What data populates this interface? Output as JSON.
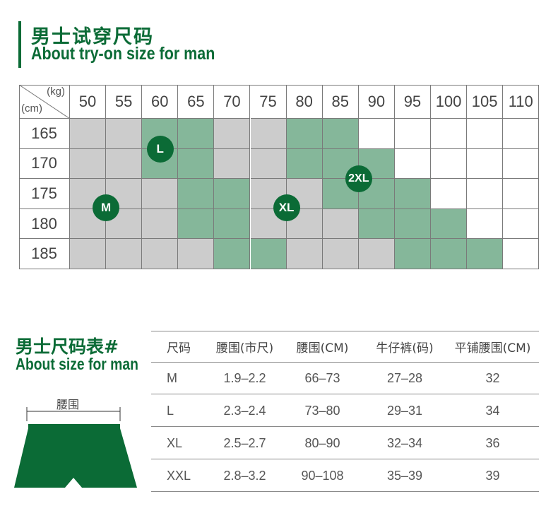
{
  "header": {
    "title_cn": "男士试穿尺码",
    "title_en": "About try-on size for man"
  },
  "tryon_grid": {
    "corner_weight_unit": "(kg)",
    "corner_height_unit": "(cm)",
    "weights": [
      "50",
      "55",
      "60",
      "65",
      "70",
      "75",
      "80",
      "85",
      "90",
      "95",
      "100",
      "105",
      "110"
    ],
    "heights": [
      "165",
      "170",
      "175",
      "180",
      "185"
    ],
    "cells": [
      [
        "gray",
        "gray",
        "green",
        "green",
        "gray",
        "gray",
        "green",
        "green",
        "white",
        "white",
        "white",
        "white",
        "white"
      ],
      [
        "gray",
        "gray",
        "green",
        "green",
        "gray",
        "gray",
        "green",
        "green",
        "green",
        "white",
        "white",
        "white",
        "white"
      ],
      [
        "gray",
        "gray",
        "gray",
        "green",
        "green",
        "gray",
        "gray",
        "green",
        "green",
        "green",
        "white",
        "white",
        "white"
      ],
      [
        "gray",
        "gray",
        "gray",
        "green",
        "green",
        "gray",
        "gray",
        "gray",
        "green",
        "green",
        "green",
        "white",
        "white"
      ],
      [
        "gray",
        "gray",
        "gray",
        "gray",
        "green",
        "green",
        "gray",
        "gray",
        "gray",
        "green",
        "green",
        "green",
        "white"
      ]
    ],
    "colors": {
      "gray": "#cccccc",
      "green": "#85b79a",
      "white": "#ffffff",
      "badge": "#0b6b36"
    },
    "badges": [
      {
        "label": "L",
        "col": 2.5,
        "row": 1.0
      },
      {
        "label": "M",
        "col": 1.0,
        "row": 2.95
      },
      {
        "label": "XL",
        "col": 6.0,
        "row": 2.95
      },
      {
        "label": "2XL",
        "col": 8.0,
        "row": 2.0
      }
    ]
  },
  "size_table": {
    "title_cn": "男士尺码表#",
    "title_en": "About size for man",
    "headers": [
      "尺码",
      "腰围(市尺)",
      "腰围(CM)",
      "牛仔裤(码)",
      "平铺腰围(CM)"
    ],
    "rows": [
      [
        "M",
        "1.9–2.2",
        "66–73",
        "27–28",
        "32"
      ],
      [
        "L",
        "2.3–2.4",
        "73–80",
        "29–31",
        "34"
      ],
      [
        "XL",
        "2.5–2.7",
        "80–90",
        "32–34",
        "36"
      ],
      [
        "XXL",
        "2.8–3.2",
        "90–108",
        "35–39",
        "39"
      ]
    ]
  },
  "diagram": {
    "waist_label": "腰围",
    "fill_color": "#0b6b36"
  }
}
